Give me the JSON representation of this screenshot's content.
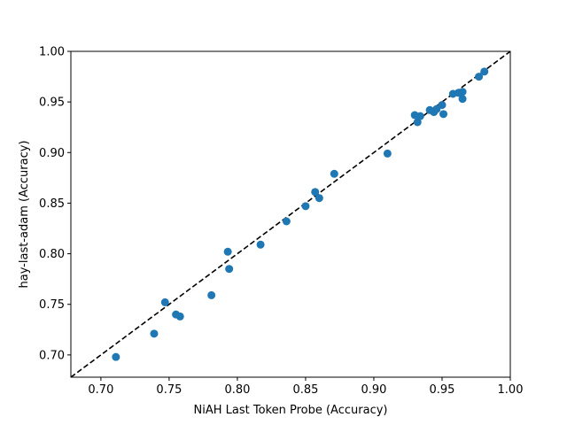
{
  "chart_data": {
    "type": "scatter",
    "title": "",
    "xlabel": "NiAH Last Token Probe (Accuracy)",
    "ylabel": "hay-last-adam (Accuracy)",
    "xlim": [
      0.678,
      1.0
    ],
    "ylim": [
      0.678,
      1.0
    ],
    "xticks": [
      "0.70",
      "0.75",
      "0.80",
      "0.85",
      "0.90",
      "0.95",
      "1.00"
    ],
    "yticks": [
      "0.70",
      "0.75",
      "0.80",
      "0.85",
      "0.90",
      "0.95",
      "1.00"
    ],
    "grid": false,
    "reference_line": {
      "style": "dashed",
      "color": "#000000",
      "from": [
        0.678,
        0.678
      ],
      "to": [
        1.0,
        1.0
      ]
    },
    "marker_color": "#1f77b4",
    "points": [
      {
        "x": 0.711,
        "y": 0.698
      },
      {
        "x": 0.739,
        "y": 0.721
      },
      {
        "x": 0.747,
        "y": 0.752
      },
      {
        "x": 0.755,
        "y": 0.74
      },
      {
        "x": 0.758,
        "y": 0.738
      },
      {
        "x": 0.781,
        "y": 0.759
      },
      {
        "x": 0.793,
        "y": 0.802
      },
      {
        "x": 0.794,
        "y": 0.785
      },
      {
        "x": 0.817,
        "y": 0.809
      },
      {
        "x": 0.836,
        "y": 0.832
      },
      {
        "x": 0.85,
        "y": 0.847
      },
      {
        "x": 0.857,
        "y": 0.861
      },
      {
        "x": 0.86,
        "y": 0.855
      },
      {
        "x": 0.871,
        "y": 0.879
      },
      {
        "x": 0.91,
        "y": 0.899
      },
      {
        "x": 0.93,
        "y": 0.937
      },
      {
        "x": 0.932,
        "y": 0.93
      },
      {
        "x": 0.934,
        "y": 0.936
      },
      {
        "x": 0.941,
        "y": 0.942
      },
      {
        "x": 0.944,
        "y": 0.94
      },
      {
        "x": 0.946,
        "y": 0.943
      },
      {
        "x": 0.95,
        "y": 0.947
      },
      {
        "x": 0.951,
        "y": 0.938
      },
      {
        "x": 0.958,
        "y": 0.958
      },
      {
        "x": 0.962,
        "y": 0.959
      },
      {
        "x": 0.965,
        "y": 0.96
      },
      {
        "x": 0.965,
        "y": 0.953
      },
      {
        "x": 0.977,
        "y": 0.975
      },
      {
        "x": 0.981,
        "y": 0.98
      }
    ]
  }
}
